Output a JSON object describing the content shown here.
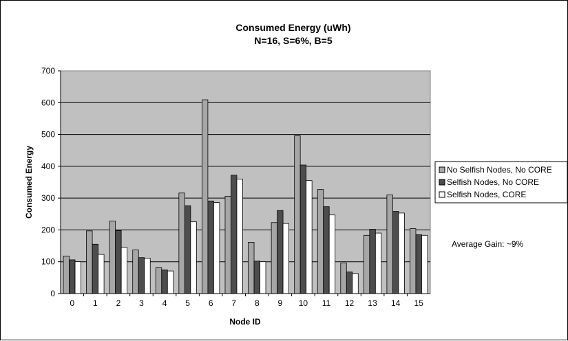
{
  "chart_data": {
    "type": "bar",
    "title": "Consumed Energy (uWh)",
    "subtitle": "N=16, S=6%, B=5",
    "xlabel": "Node ID",
    "ylabel": "Consumed Energy",
    "ylim": [
      0,
      700
    ],
    "yticks": [
      0,
      100,
      200,
      300,
      400,
      500,
      600,
      700
    ],
    "grid": true,
    "legend_position": "right",
    "categories": [
      "0",
      "1",
      "2",
      "3",
      "4",
      "5",
      "6",
      "7",
      "8",
      "9",
      "10",
      "11",
      "12",
      "13",
      "14",
      "15"
    ],
    "series": [
      {
        "name": "No Selfish Nodes, No CORE",
        "color": "#a6a6a6",
        "values": [
          118,
          197,
          228,
          137,
          81,
          316,
          609,
          306,
          161,
          223,
          496,
          327,
          96,
          183,
          310,
          204
        ]
      },
      {
        "name": "Selfish Nodes, No CORE",
        "color": "#4d4d4d",
        "values": [
          106,
          155,
          198,
          113,
          74,
          276,
          291,
          372,
          102,
          261,
          404,
          273,
          68,
          202,
          258,
          185
        ]
      },
      {
        "name": "Selfish Nodes, CORE",
        "color": "#ffffff",
        "values": [
          100,
          123,
          145,
          111,
          71,
          226,
          286,
          360,
          100,
          220,
          355,
          247,
          63,
          190,
          253,
          183
        ]
      }
    ],
    "annotation": "Average Gain: ~9%",
    "plot_background": "#c0c0c0"
  }
}
